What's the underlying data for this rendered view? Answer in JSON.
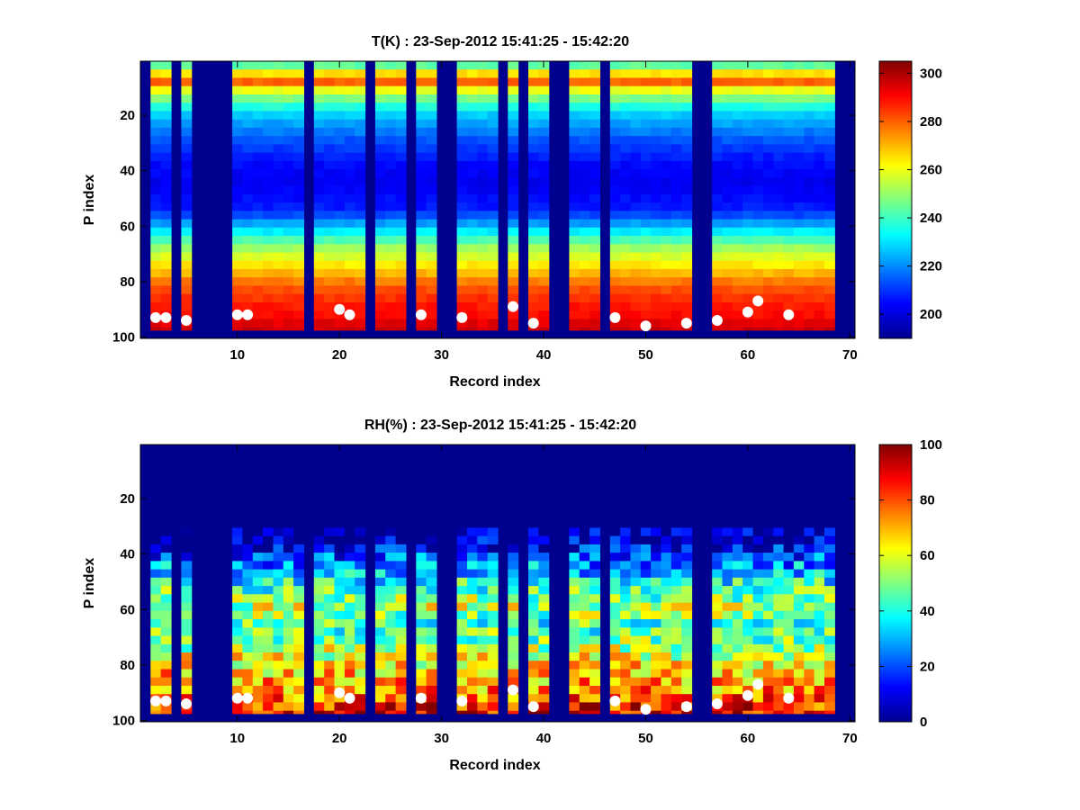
{
  "chart_data": [
    {
      "type": "heatmap",
      "title": "T(K) : 23-Sep-2012 15:41:25 - 15:42:20",
      "xlabel": "Record index",
      "ylabel": "P index",
      "xlim": [
        0.5,
        70.5
      ],
      "ylim": [
        0.5,
        100.5
      ],
      "x_ticks": [
        10,
        20,
        30,
        40,
        50,
        60,
        70
      ],
      "y_ticks": [
        20,
        40,
        60,
        80,
        100
      ],
      "y_reversed": true,
      "clim": [
        190,
        305
      ],
      "colorbar_ticks": [
        200,
        220,
        240,
        260,
        280,
        300
      ],
      "colormap": "jet",
      "missing_value_color": "#00008f",
      "data_record_range": [
        2,
        68
      ],
      "data_p_range": [
        1,
        97
      ],
      "records_without_data": [
        1,
        4,
        6,
        7,
        8,
        9,
        17,
        23,
        27,
        30,
        31,
        36,
        38,
        41,
        42,
        46,
        55,
        56,
        69,
        70
      ],
      "profile_T_K": {
        "p_index": [
          1,
          8,
          12,
          20,
          30,
          38,
          45,
          55,
          62,
          68,
          75,
          82,
          88,
          94,
          97
        ],
        "value": [
          233,
          283,
          256,
          228,
          213,
          205,
          202,
          208,
          230,
          250,
          265,
          280,
          287,
          291,
          296
        ]
      },
      "markers": {
        "color": "#ffffff",
        "points": [
          [
            2,
            93
          ],
          [
            3,
            93
          ],
          [
            5,
            94
          ],
          [
            10,
            92
          ],
          [
            11,
            92
          ],
          [
            20,
            90
          ],
          [
            21,
            92
          ],
          [
            28,
            92
          ],
          [
            32,
            93
          ],
          [
            37,
            89
          ],
          [
            39,
            95
          ],
          [
            47,
            93
          ],
          [
            50,
            96
          ],
          [
            54,
            95
          ],
          [
            57,
            94
          ],
          [
            60,
            91
          ],
          [
            61,
            87
          ],
          [
            64,
            92
          ]
        ]
      },
      "colorbar_colors": [
        "#00008f",
        "#0000ff",
        "#0080ff",
        "#00ffff",
        "#80ff80",
        "#ffff00",
        "#ff8000",
        "#ff0000",
        "#800000"
      ]
    },
    {
      "type": "heatmap",
      "title": "RH(%) : 23-Sep-2012 15:41:25 - 15:42:20",
      "xlabel": "Record index",
      "ylabel": "P index",
      "xlim": [
        0.5,
        70.5
      ],
      "ylim": [
        0.5,
        100.5
      ],
      "x_ticks": [
        10,
        20,
        30,
        40,
        50,
        60,
        70
      ],
      "y_ticks": [
        20,
        40,
        60,
        80,
        100
      ],
      "y_reversed": true,
      "clim": [
        0,
        100
      ],
      "colorbar_ticks": [
        0,
        20,
        40,
        60,
        80,
        100
      ],
      "colormap": "jet",
      "missing_value_color": "#00008f",
      "data_record_range": [
        2,
        68
      ],
      "data_p_range": [
        1,
        97
      ],
      "records_without_data": [
        1,
        4,
        6,
        7,
        8,
        9,
        17,
        23,
        27,
        30,
        31,
        36,
        38,
        41,
        42,
        46,
        55,
        56,
        69,
        70
      ],
      "profile_RH_pct": {
        "p_index": [
          1,
          30,
          36,
          42,
          48,
          55,
          60,
          66,
          72,
          78,
          84,
          90,
          94,
          97
        ],
        "value": [
          0,
          0,
          6,
          20,
          34,
          48,
          56,
          42,
          50,
          60,
          68,
          74,
          80,
          88
        ]
      },
      "markers": {
        "color": "#ffffff",
        "points": [
          [
            2,
            93
          ],
          [
            3,
            93
          ],
          [
            5,
            94
          ],
          [
            10,
            92
          ],
          [
            11,
            92
          ],
          [
            20,
            90
          ],
          [
            21,
            92
          ],
          [
            28,
            92
          ],
          [
            32,
            93
          ],
          [
            37,
            89
          ],
          [
            39,
            95
          ],
          [
            47,
            93
          ],
          [
            50,
            96
          ],
          [
            54,
            95
          ],
          [
            57,
            94
          ],
          [
            60,
            91
          ],
          [
            61,
            87
          ],
          [
            64,
            92
          ]
        ]
      },
      "colorbar_colors": [
        "#00008f",
        "#0000ff",
        "#0080ff",
        "#00ffff",
        "#80ff80",
        "#ffff00",
        "#ff8000",
        "#ff0000",
        "#800000"
      ]
    }
  ]
}
